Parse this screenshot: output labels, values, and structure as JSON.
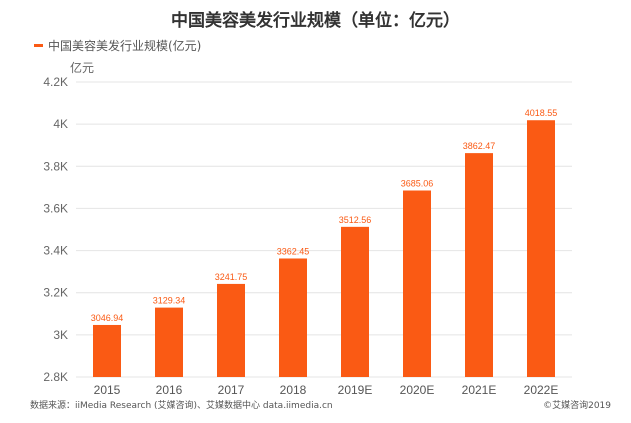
{
  "chart_data": {
    "type": "bar",
    "title": "中国美容美发行业规模（单位：亿元）",
    "legend": "中国美容美发行业规模(亿元)",
    "ylabel": "亿元",
    "ylim": [
      2.8,
      4.2
    ],
    "yticks": [
      2.8,
      3.0,
      3.2,
      3.4,
      3.6,
      3.8,
      4.0,
      4.2
    ],
    "ytick_labels": [
      "2.8K",
      "3K",
      "3.2K",
      "3.4K",
      "3.6K",
      "3.8K",
      "4K",
      "4.2K"
    ],
    "categories": [
      "2015",
      "2016",
      "2017",
      "2018",
      "2019E",
      "2020E",
      "2021E",
      "2022E"
    ],
    "values": [
      3046.94,
      3129.34,
      3241.75,
      3362.45,
      3512.56,
      3685.06,
      3862.47,
      4018.55
    ],
    "value_labels": [
      "3046.94",
      "3129.34",
      "3241.75",
      "3362.45",
      "3512.56",
      "3685.06",
      "3862.47",
      "4018.55"
    ],
    "grid": true,
    "legend_position": "top-left",
    "bar_color": "#fa5a14",
    "grid_color": "#e4e4e4"
  },
  "footer": {
    "source": "数据来源：iiMedia Research (艾媒咨询)、艾媒数据中心 data.iimedia.cn",
    "copyright": "©艾媒咨询2019"
  }
}
